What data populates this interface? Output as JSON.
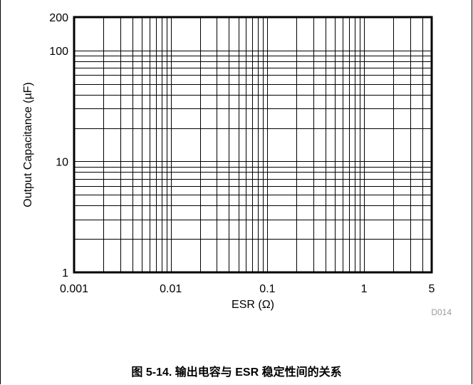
{
  "chart_data": {
    "type": "line",
    "title": "",
    "xlabel": "ESR (Ω)",
    "ylabel": "Output Capacitance (µF)",
    "xscale": "log",
    "yscale": "log",
    "xlim": [
      0.001,
      5
    ],
    "ylim": [
      1,
      200
    ],
    "x_ticks": [
      {
        "value": 0.001,
        "label": "0.001"
      },
      {
        "value": 0.01,
        "label": "0.01"
      },
      {
        "value": 0.1,
        "label": "0.1"
      },
      {
        "value": 1,
        "label": "1"
      },
      {
        "value": 5,
        "label": "5"
      }
    ],
    "y_ticks": [
      {
        "value": 1,
        "label": "1"
      },
      {
        "value": 10,
        "label": "10"
      },
      {
        "value": 100,
        "label": "100"
      },
      {
        "value": 200,
        "label": "200"
      }
    ],
    "grid": "on (log minor)",
    "series": []
  },
  "figure_code": "D014",
  "caption": "图 5-14. 输出电容与 ESR 稳定性间的关系"
}
